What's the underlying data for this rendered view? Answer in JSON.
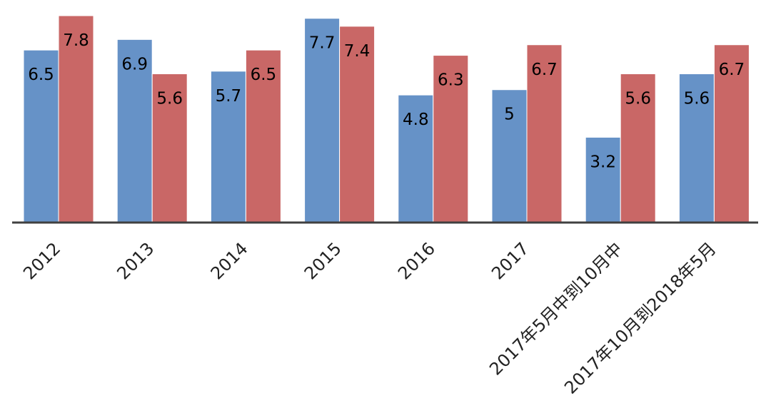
{
  "chart_data": {
    "type": "bar",
    "categories": [
      "2012",
      "2013",
      "2014",
      "2015",
      "2016",
      "2017",
      "2017年5月中到10月中",
      "2017年10月到2018年5月"
    ],
    "series": [
      {
        "values": [
          6.5,
          6.9,
          5.7,
          7.7,
          4.8,
          5,
          3.2,
          5.6
        ],
        "labels": [
          "6.5",
          "6.9",
          "5.7",
          "7.7",
          "4.8",
          "5",
          "3.2",
          "5.6"
        ]
      },
      {
        "values": [
          7.8,
          5.6,
          6.5,
          7.4,
          6.3,
          6.7,
          5.6,
          6.7
        ],
        "labels": [
          "7.8",
          "5.6",
          "6.5",
          "7.4",
          "6.3",
          "6.7",
          "5.6",
          "6.7"
        ]
      }
    ],
    "colors": [
      "#6692c7",
      "#c96766"
    ],
    "ylim": [
      0,
      7.8
    ],
    "grid": false,
    "legend": "none"
  }
}
